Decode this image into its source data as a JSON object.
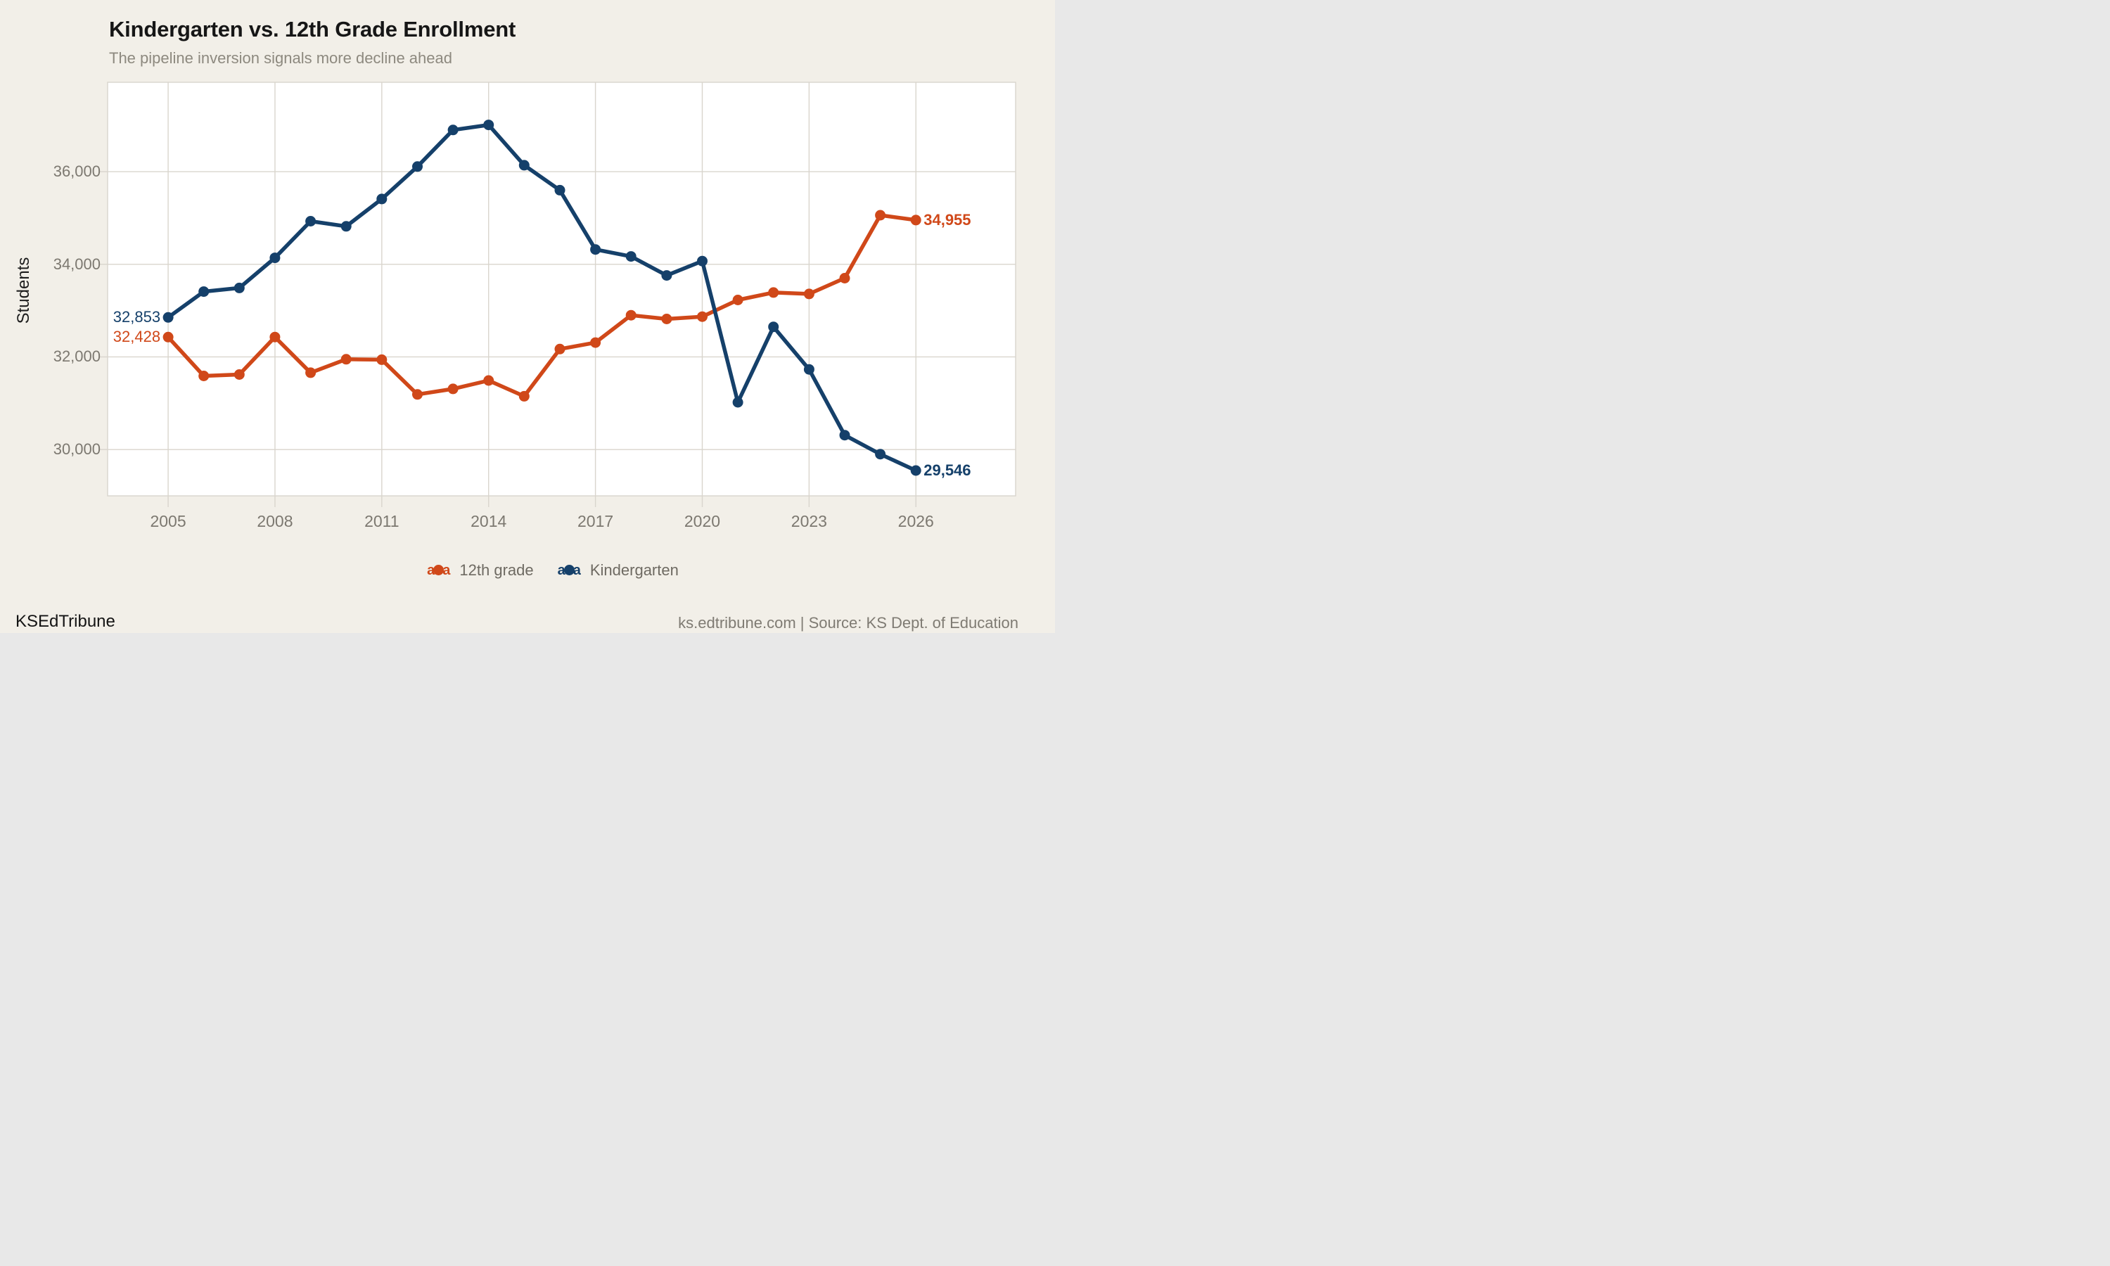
{
  "colors": {
    "background": "#f2efe8",
    "plot_background": "#ffffff",
    "grid": "#d9d5cd",
    "text_dark": "#161616",
    "text_subtitle": "#8d897f",
    "text_tick": "#7c7870",
    "text_legend": "#6e6a62",
    "text_footer": "#7f7b73"
  },
  "footer": {
    "brand": "KSEdTribune",
    "source": "ks.edtribune.com | Source: KS Dept. of Education"
  },
  "chart_data": {
    "type": "line",
    "title": "Kindergarten vs. 12th Grade Enrollment",
    "subtitle": "The pipeline inversion signals more decline ahead",
    "ylabel": "Students",
    "xlabel": "",
    "grid": true,
    "legend_position": "bottom",
    "xlim": [
      2003.3,
      2028.8
    ],
    "ylim": [
      29000,
      37930
    ],
    "x": [
      2005,
      2006,
      2007,
      2008,
      2009,
      2010,
      2011,
      2012,
      2013,
      2014,
      2015,
      2016,
      2017,
      2018,
      2019,
      2020,
      2021,
      2022,
      2023,
      2024,
      2025,
      2026
    ],
    "x_ticks": [
      {
        "value": 2005,
        "label": "2005"
      },
      {
        "value": 2008,
        "label": "2008"
      },
      {
        "value": 2011,
        "label": "2011"
      },
      {
        "value": 2014,
        "label": "2014"
      },
      {
        "value": 2017,
        "label": "2017"
      },
      {
        "value": 2020,
        "label": "2020"
      },
      {
        "value": 2023,
        "label": "2023"
      },
      {
        "value": 2026,
        "label": "2026"
      }
    ],
    "y_ticks": [
      {
        "value": 30000,
        "label": "30,000"
      },
      {
        "value": 32000,
        "label": "32,000"
      },
      {
        "value": 34000,
        "label": "34,000"
      },
      {
        "value": 36000,
        "label": "36,000"
      }
    ],
    "series": [
      {
        "name": "12th grade",
        "color": "#d04819",
        "values": [
          32428,
          31590,
          31620,
          32430,
          31660,
          31950,
          31940,
          31190,
          31310,
          31490,
          31150,
          32170,
          32310,
          32900,
          32820,
          32870,
          33230,
          33390,
          33360,
          33700,
          35060,
          34955
        ]
      },
      {
        "name": "Kindergarten",
        "color": "#15406a",
        "values": [
          32853,
          33410,
          33490,
          34140,
          34930,
          34820,
          35410,
          36110,
          36900,
          37010,
          36140,
          35600,
          34320,
          34170,
          33760,
          34070,
          31020,
          32650,
          31730,
          30310,
          29900,
          29546
        ]
      }
    ],
    "point_labels": [
      {
        "series": "Kindergarten",
        "year": 2005,
        "label": "32,853",
        "side": "left",
        "bold": false
      },
      {
        "series": "12th grade",
        "year": 2005,
        "label": "32,428",
        "side": "left",
        "bold": false
      },
      {
        "series": "12th grade",
        "year": 2026,
        "label": "34,955",
        "side": "right",
        "bold": true
      },
      {
        "series": "Kindergarten",
        "year": 2026,
        "label": "29,546",
        "side": "right",
        "bold": true
      }
    ]
  }
}
